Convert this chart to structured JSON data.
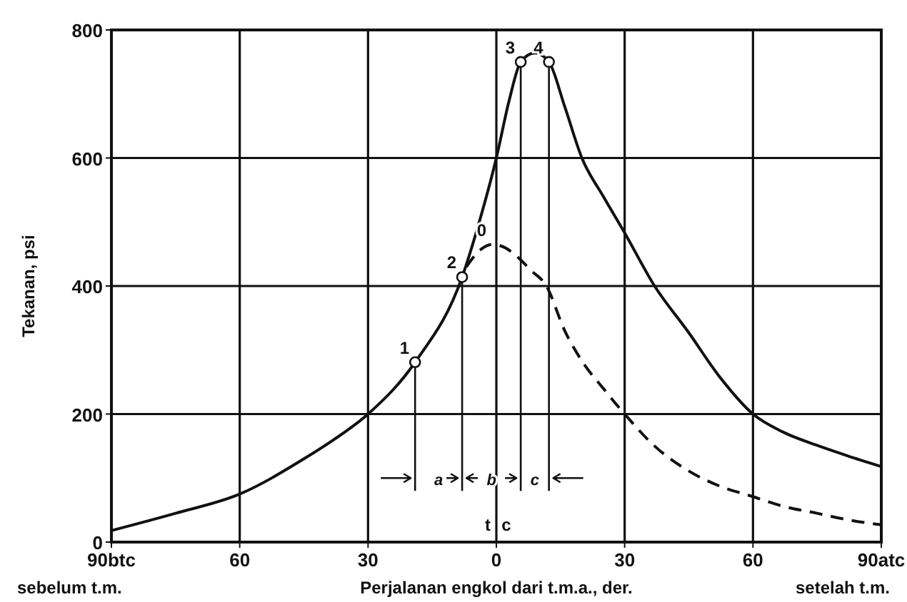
{
  "chart_data": {
    "type": "line",
    "xlabel": "Perjalanan engkol dari t.m.a., der.",
    "ylabel": "Tekanan, psi",
    "xlim": [
      -90,
      90
    ],
    "ylim": [
      0,
      800
    ],
    "xticks": [
      {
        "value": -90,
        "label": "90btc"
      },
      {
        "value": -60,
        "label": "60"
      },
      {
        "value": -30,
        "label": "30"
      },
      0,
      {
        "value": 30,
        "label": "30"
      },
      60,
      {
        "value": 90,
        "label": "90atc"
      }
    ],
    "yticks": [
      0,
      200,
      400,
      600,
      800
    ],
    "grid": true,
    "series": [
      {
        "color": "#111111",
        "line_style": "solid",
        "marker": "none",
        "x": [
          -90,
          -75,
          -60,
          -45,
          -38,
          -30,
          -19,
          -8,
          -4,
          0,
          3,
          5.7,
          9,
          12.3,
          16,
          20,
          25,
          30,
          37,
          45,
          52,
          60,
          67,
          75,
          82,
          90
        ],
        "values": [
          18,
          45,
          75,
          130,
          160,
          200,
          281,
          414,
          500,
          600,
          690,
          750,
          764,
          750,
          680,
          600,
          540,
          483,
          400,
          327,
          260,
          200,
          172,
          151,
          135,
          118
        ]
      },
      {
        "color": "#111111",
        "line_style": "dashed",
        "marker": "none",
        "x": [
          -7,
          -4,
          -1,
          2,
          5,
          8,
          11.7,
          16,
          20,
          25,
          30,
          37,
          45,
          52,
          60,
          67,
          75,
          82,
          90
        ],
        "values": [
          430,
          455,
          465,
          460,
          445,
          425,
          400,
          330,
          283,
          240,
          200,
          150,
          111,
          88,
          71,
          56,
          45,
          35,
          27
        ]
      },
      {
        "type": "scatter",
        "color": "#111111",
        "marker": "circle",
        "x": [
          -19,
          -8,
          5.7,
          12.3
        ],
        "values": [
          281,
          414,
          750,
          750
        ],
        "errors": [
          [
            80,
            281
          ],
          [
            80,
            414
          ],
          [
            80,
            750
          ],
          [
            80,
            750
          ]
        ]
      }
    ],
    "annotations": [
      {
        "text": "1",
        "x": -19,
        "y": 281
      },
      {
        "text": "2",
        "x": -8,
        "y": 414
      },
      {
        "text": "3",
        "x": 5.7,
        "y": 750
      },
      {
        "text": "4",
        "x": 12.3,
        "y": 750
      },
      {
        "text": "0",
        "x": -1,
        "y": 465
      },
      "a",
      "b",
      "c",
      "t",
      "c",
      "sebelum t.m.",
      "setelah t.m."
    ]
  }
}
